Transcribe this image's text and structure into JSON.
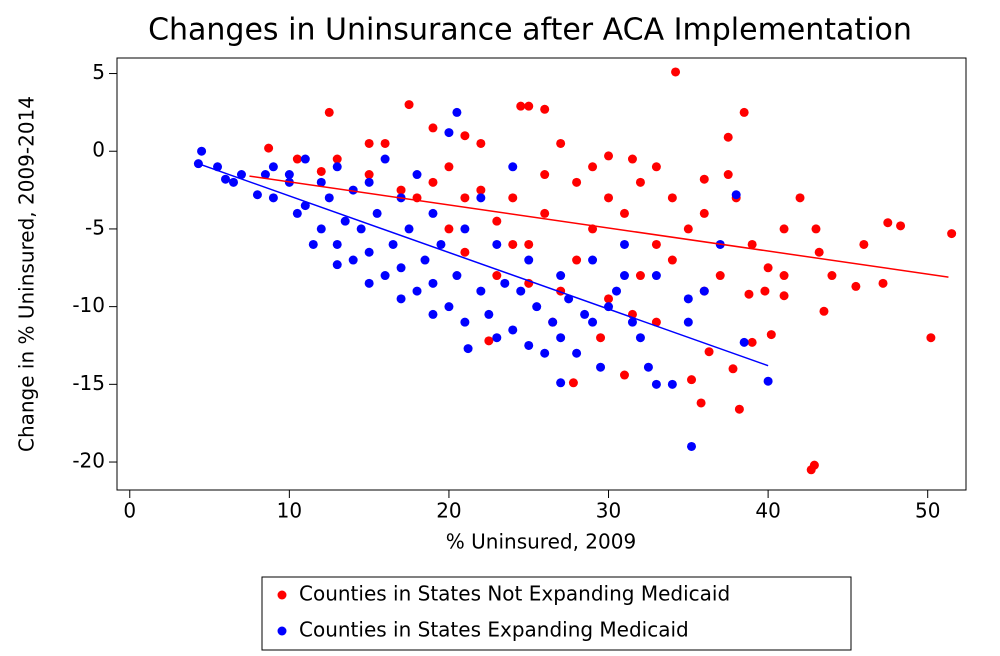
{
  "chart_data": {
    "type": "scatter",
    "title": "Changes in Uninsurance after ACA Implementation",
    "x_label": "% Uninsured, 2009",
    "y_label": "Change in % Uninsured, 2009-2014",
    "xlim": [
      -0.8,
      52.4
    ],
    "ylim": [
      -21.8,
      6
    ],
    "xticks": [
      0,
      10,
      20,
      30,
      40,
      50
    ],
    "yticks": [
      5,
      0,
      -5,
      -10,
      -15,
      -20
    ],
    "legend": "bottom",
    "series": [
      {
        "name": "Counties in States Not Expanding Medicaid",
        "color": "#ff0000",
        "x": [
          34.2,
          38.5,
          17.5,
          24.5,
          25,
          12.5,
          42.7,
          42.9,
          50.2,
          51.5,
          48.3,
          47.5,
          45.5,
          47.2,
          43.5,
          38.2,
          35.8,
          37.8,
          35.2,
          27.8,
          31,
          22.5,
          36.3,
          40.2,
          46,
          43,
          43.2,
          41,
          40,
          39.8,
          38.8,
          42,
          37.5,
          37.5,
          36,
          8.7,
          10.5,
          13,
          15,
          16,
          19,
          21,
          22,
          27,
          30,
          31.5,
          33,
          26,
          30,
          28,
          24,
          22,
          20,
          26,
          29,
          31,
          33,
          35,
          28,
          25,
          32,
          34,
          36,
          30,
          27,
          24,
          23,
          21,
          19,
          18,
          26,
          29,
          32,
          34,
          36,
          38,
          39,
          41,
          37,
          33,
          31.5,
          29.5,
          26.5,
          25,
          23,
          21,
          20,
          17,
          15,
          12,
          44,
          39,
          41
        ],
        "values": [
          5.1,
          2.5,
          3,
          2.9,
          2.9,
          2.5,
          -20.5,
          -20.2,
          -12,
          -5.3,
          -4.8,
          -4.6,
          -8.7,
          -8.5,
          -10.3,
          -16.6,
          -16.2,
          -14,
          -14.7,
          -14.9,
          -14.4,
          -12.2,
          -12.9,
          -11.8,
          -6,
          -5,
          -6.5,
          -5,
          -7.5,
          -9,
          -9.2,
          -3,
          0.9,
          -1.5,
          -1.8,
          0.2,
          -0.5,
          -0.5,
          0.5,
          0.5,
          1.5,
          1,
          0.5,
          0.5,
          -0.3,
          -0.5,
          -1,
          2.7,
          -3,
          -2,
          -3,
          -2.5,
          -1,
          -4,
          -5,
          -4,
          -6,
          -5,
          -7,
          -6,
          -8,
          -7,
          -9,
          -9.5,
          -9,
          -6,
          -4.5,
          -3,
          -2,
          -3,
          -1.5,
          -1,
          -2,
          -3,
          -4,
          -3,
          -6,
          -8,
          -8,
          -11,
          -10.5,
          -12,
          -11,
          -8.5,
          -8,
          -6.5,
          -5,
          -2.5,
          -1.5,
          -1.3,
          -8,
          -12.3,
          -9.3
        ]
      },
      {
        "name": "Counties in States Expanding Medicaid",
        "color": "#0000ff",
        "x": [
          4.3,
          4.5,
          5.5,
          6,
          7,
          8,
          9,
          10,
          10.5,
          11,
          12,
          12.5,
          13,
          13.5,
          14,
          14.5,
          15,
          15.5,
          16,
          16.5,
          17,
          17.5,
          18,
          18.5,
          19,
          19.5,
          20,
          20.5,
          21,
          21.2,
          22,
          22.5,
          23,
          23.5,
          24,
          24.5,
          25,
          25.5,
          26,
          26.5,
          27,
          27.5,
          28,
          28.5,
          29,
          29.5,
          30,
          30.5,
          31,
          31.5,
          32,
          32.5,
          33,
          34,
          35,
          35.2,
          36,
          37,
          38,
          38.5,
          40,
          27,
          20.5,
          20,
          9,
          11,
          13,
          15,
          17,
          19,
          21,
          23,
          25,
          27,
          29,
          31,
          33,
          35,
          24,
          22,
          18,
          16,
          14,
          12,
          10,
          8.5,
          6.5,
          11.5,
          13,
          15,
          17,
          19
        ],
        "values": [
          -0.8,
          0,
          -1,
          -1.8,
          -1.5,
          -2.8,
          -3,
          -2,
          -4,
          -3.5,
          -5,
          -3,
          -6,
          -4.5,
          -7,
          -5,
          -6.5,
          -4,
          -8,
          -6,
          -7.5,
          -5,
          -9,
          -7,
          -8.5,
          -6,
          -10,
          -8,
          -11,
          -12.7,
          -9,
          -10.5,
          -12,
          -8.5,
          -11.5,
          -9,
          -12.5,
          -10,
          -13,
          -11,
          -12,
          -9.5,
          -13,
          -10.5,
          -11,
          -13.9,
          -10,
          -9,
          -8,
          -11,
          -12,
          -13.9,
          -15,
          -15,
          -11,
          -19,
          -9,
          -6,
          -2.8,
          -12.3,
          -14.8,
          -14.9,
          2.5,
          1.2,
          -1,
          -0.5,
          -1,
          -2,
          -3,
          -4,
          -5,
          -6,
          -7,
          -8,
          -7,
          -6,
          -8,
          -9.5,
          -1,
          -3,
          -1.5,
          -0.5,
          -2.5,
          -2,
          -1.5,
          -1.5,
          -2,
          -6,
          -7.3,
          -8.5,
          -9.5,
          -10.5
        ]
      }
    ],
    "fit_lines": [
      {
        "color": "#ff0000",
        "x": [
          7.5,
          51.3
        ],
        "values": [
          -1.6,
          -8.1
        ]
      },
      {
        "color": "#0000ff",
        "x": [
          4.3,
          40
        ],
        "values": [
          -0.8,
          -13.8
        ]
      }
    ]
  }
}
